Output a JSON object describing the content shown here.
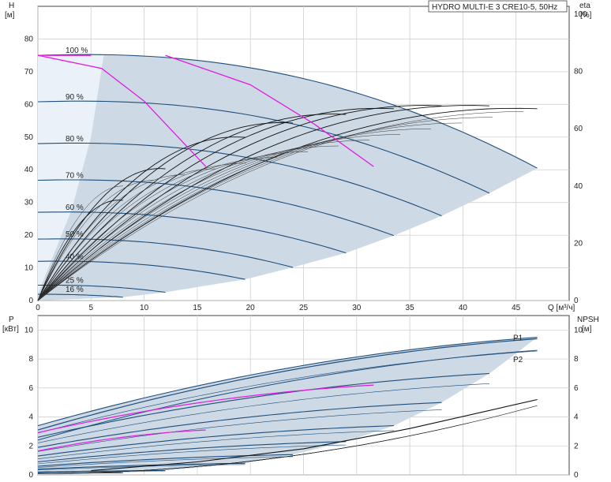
{
  "chart_data": [
    {
      "type": "line",
      "panel": "head-efficiency",
      "title": "HYDRO MULTI-E 3 CRE10-5, 50Hz",
      "xlabel": "Q [м³/ч]",
      "ylabel_top": "H",
      "ylabel_unit": "[м]",
      "y2label_top": "eta",
      "y2label_unit": "[%]",
      "xlim": [
        0,
        50
      ],
      "ylim": [
        0,
        90
      ],
      "y2lim": [
        0,
        100
      ],
      "x_ticks": [
        "0",
        "5",
        "10",
        "15",
        "20",
        "25",
        "30",
        "35",
        "40",
        "45"
      ],
      "y_ticks": [
        "0",
        "10",
        "20",
        "30",
        "40",
        "50",
        "60",
        "70",
        "80"
      ],
      "y2_ticks": [
        "0",
        "20",
        "40",
        "60",
        "80",
        "100"
      ],
      "grid": true,
      "speed_curves": [
        {
          "name": "100 %",
          "label": "100 %",
          "q_max": 47,
          "h0": 75
        },
        {
          "name": "90 %",
          "label": "90 %",
          "q_max": 42.5,
          "h0": 60.8
        },
        {
          "name": "80 %",
          "label": "80 %",
          "q_max": 38,
          "h0": 48
        },
        {
          "name": "70 %",
          "label": "70 %",
          "q_max": 33.5,
          "h0": 36.8
        },
        {
          "name": "60 %",
          "label": "60 %",
          "q_max": 29,
          "h0": 27
        },
        {
          "name": "50 %",
          "label": "50 %",
          "q_max": 24,
          "h0": 18.8
        },
        {
          "name": "40 %",
          "label": "40 %",
          "q_max": 19.5,
          "h0": 12
        },
        {
          "name": "25 %",
          "label": "25 %",
          "q_max": 12,
          "h0": 4.7
        },
        {
          "name": "16 %",
          "label": "16 %",
          "q_max": 8,
          "h0": 1.9
        }
      ],
      "operating_area_q_right": [
        47,
        42.5,
        38,
        33.5,
        29,
        24,
        19.5,
        12,
        8
      ],
      "efficiency_peaks": [
        {
          "speed": "100 %",
          "q_end": 47,
          "eta_max": 67
        },
        {
          "speed": "90 %",
          "q_end": 42.5,
          "eta_max": 68
        },
        {
          "speed": "80 %",
          "q_end": 38,
          "eta_max": 68
        },
        {
          "speed": "70 %",
          "q_end": 33.5,
          "eta_max": 67
        },
        {
          "speed": "60 %",
          "q_end": 29,
          "eta_max": 65
        },
        {
          "speed": "50 %",
          "q_end": 24,
          "eta_max": 62
        },
        {
          "speed": "40 %",
          "q_end": 19.5,
          "eta_max": 57
        },
        {
          "speed": "25 %",
          "q_end": 12,
          "eta_max": 46
        },
        {
          "speed": "16 %",
          "q_end": 8,
          "eta_max": 35
        }
      ],
      "magenta_curves": [
        {
          "q": [
            0,
            6,
            10,
            15.8
          ],
          "h": [
            75,
            71,
            61,
            41
          ]
        },
        {
          "q": [
            12,
            20,
            26,
            31.6
          ],
          "h": [
            75,
            66,
            54,
            41
          ]
        }
      ]
    },
    {
      "type": "line",
      "panel": "power-npsh",
      "ylabel_top": "P",
      "ylabel_unit": "[кВт]",
      "y2label_top": "NPSH",
      "y2label_unit": "[м]",
      "xlim": [
        0,
        50
      ],
      "ylim": [
        0,
        11
      ],
      "y2lim": [
        0,
        11
      ],
      "y_ticks": [
        "0",
        "2",
        "4",
        "6",
        "8",
        "10"
      ],
      "y2_ticks": [
        "0",
        "2",
        "4",
        "6",
        "8",
        "10"
      ],
      "series_labels": [
        "P1",
        "P2"
      ],
      "power_curves": [
        {
          "speed": "100 %",
          "q_max": 47,
          "p0": 3.4,
          "pmax": 9.5
        },
        {
          "speed": "90 %",
          "q_max": 42.5,
          "p0": 2.6,
          "pmax": 7.0
        },
        {
          "speed": "80 %",
          "q_max": 38,
          "p0": 1.9,
          "pmax": 5.0
        },
        {
          "speed": "70 %",
          "q_max": 33.5,
          "p0": 1.3,
          "pmax": 3.4
        },
        {
          "speed": "60 %",
          "q_max": 29,
          "p0": 0.9,
          "pmax": 2.3
        },
        {
          "speed": "50 %",
          "q_max": 24,
          "p0": 0.6,
          "pmax": 1.4
        },
        {
          "speed": "40 %",
          "q_max": 19.5,
          "p0": 0.4,
          "pmax": 0.8
        },
        {
          "speed": "25 %",
          "q_max": 12,
          "p0": 0.2,
          "pmax": 0.3
        },
        {
          "speed": "16 %",
          "q_max": 8,
          "p0": 0.1,
          "pmax": 0.15
        }
      ],
      "p1_curve": {
        "q_max": 47,
        "p0": 3.1,
        "pmax": 9.4
      },
      "p2_curve": {
        "q_max": 47,
        "p0": 2.4,
        "pmax": 8.6
      },
      "npsh_curve": {
        "q": [
          5,
          15,
          25,
          35,
          47
        ],
        "npsh": [
          0.3,
          0.9,
          1.8,
          3.2,
          5.2
        ]
      }
    }
  ]
}
